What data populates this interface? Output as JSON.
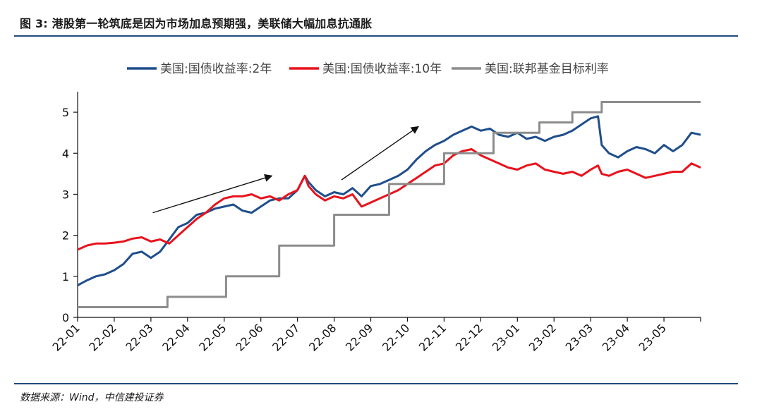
{
  "figure": {
    "title": "图 3: 港股第一轮筑底是因为市场加息预期强，美联储大幅加息抗通胀",
    "source": "数据来源：Wind，中信建投证券"
  },
  "chart_data": {
    "type": "line",
    "title": "",
    "xlabel": "",
    "ylabel": "",
    "ylim": [
      0,
      5.5
    ],
    "yticks": [
      0,
      1,
      2,
      3,
      4,
      5
    ],
    "xlim": [
      0,
      17
    ],
    "xticks": [
      "22-01",
      "22-02",
      "22-03",
      "22-04",
      "22-05",
      "22-06",
      "22-07",
      "22-08",
      "22-09",
      "22-10",
      "22-11",
      "22-12",
      "23-01",
      "23-02",
      "23-03",
      "23-04",
      "23-05"
    ],
    "grid": false,
    "legend_position": "top",
    "series": [
      {
        "name": "美国:国债收益率:2年",
        "color": "#1f4e8c",
        "x": [
          0,
          0.25,
          0.5,
          0.75,
          1.0,
          1.25,
          1.5,
          1.75,
          2.0,
          2.25,
          2.5,
          2.75,
          3.0,
          3.25,
          3.5,
          3.75,
          4.0,
          4.25,
          4.5,
          4.75,
          5.0,
          5.25,
          5.5,
          5.75,
          6.0,
          6.2,
          6.3,
          6.5,
          6.75,
          7.0,
          7.25,
          7.5,
          7.75,
          8.0,
          8.25,
          8.5,
          8.75,
          9.0,
          9.25,
          9.5,
          9.75,
          10.0,
          10.25,
          10.5,
          10.75,
          11.0,
          11.25,
          11.5,
          11.75,
          12.0,
          12.25,
          12.5,
          12.75,
          13.0,
          13.25,
          13.5,
          13.75,
          14.0,
          14.2,
          14.3,
          14.5,
          14.75,
          15.0,
          15.25,
          15.5,
          15.75,
          16.0,
          16.25,
          16.5,
          16.75,
          17.0
        ],
        "y": [
          0.78,
          0.9,
          1.0,
          1.05,
          1.15,
          1.3,
          1.55,
          1.6,
          1.45,
          1.6,
          1.9,
          2.2,
          2.3,
          2.5,
          2.55,
          2.65,
          2.7,
          2.75,
          2.6,
          2.55,
          2.7,
          2.85,
          2.9,
          2.9,
          3.1,
          3.45,
          3.3,
          3.1,
          2.95,
          3.05,
          3.0,
          3.15,
          2.95,
          3.2,
          3.25,
          3.35,
          3.45,
          3.6,
          3.85,
          4.05,
          4.2,
          4.3,
          4.45,
          4.55,
          4.65,
          4.55,
          4.6,
          4.45,
          4.4,
          4.5,
          4.35,
          4.4,
          4.3,
          4.4,
          4.45,
          4.55,
          4.7,
          4.85,
          4.9,
          4.2,
          4.0,
          3.9,
          4.05,
          4.15,
          4.1,
          4.0,
          4.2,
          4.05,
          4.2,
          4.5,
          4.45
        ]
      },
      {
        "name": "美国:国债收益率:10年",
        "color": "#e8131c",
        "x": [
          0,
          0.25,
          0.5,
          0.75,
          1.0,
          1.25,
          1.5,
          1.75,
          2.0,
          2.25,
          2.5,
          2.75,
          3.0,
          3.25,
          3.5,
          3.75,
          4.0,
          4.25,
          4.5,
          4.75,
          5.0,
          5.25,
          5.5,
          5.75,
          6.0,
          6.2,
          6.3,
          6.5,
          6.75,
          7.0,
          7.25,
          7.5,
          7.75,
          8.0,
          8.25,
          8.5,
          8.75,
          9.0,
          9.25,
          9.5,
          9.75,
          10.0,
          10.25,
          10.5,
          10.75,
          11.0,
          11.25,
          11.5,
          11.75,
          12.0,
          12.25,
          12.5,
          12.75,
          13.0,
          13.25,
          13.5,
          13.75,
          14.0,
          14.2,
          14.3,
          14.5,
          14.75,
          15.0,
          15.25,
          15.5,
          15.75,
          16.0,
          16.25,
          16.5,
          16.75,
          17.0
        ],
        "y": [
          1.65,
          1.75,
          1.8,
          1.8,
          1.82,
          1.85,
          1.92,
          1.95,
          1.85,
          1.9,
          1.8,
          2.0,
          2.2,
          2.4,
          2.55,
          2.75,
          2.9,
          2.95,
          2.95,
          3.0,
          2.9,
          2.95,
          2.85,
          3.0,
          3.1,
          3.45,
          3.2,
          3.0,
          2.85,
          2.95,
          2.9,
          3.0,
          2.7,
          2.8,
          2.9,
          3.0,
          3.1,
          3.25,
          3.4,
          3.55,
          3.7,
          3.75,
          3.95,
          4.05,
          4.1,
          3.95,
          3.85,
          3.75,
          3.65,
          3.6,
          3.7,
          3.75,
          3.6,
          3.55,
          3.5,
          3.55,
          3.45,
          3.6,
          3.7,
          3.5,
          3.45,
          3.55,
          3.6,
          3.5,
          3.4,
          3.45,
          3.5,
          3.55,
          3.55,
          3.75,
          3.65
        ]
      },
      {
        "name": "美国:联邦基金目标利率",
        "color": "#8c8c8c",
        "x": [
          0,
          2.45,
          2.45,
          4.05,
          4.05,
          5.5,
          5.5,
          7.0,
          7.0,
          8.5,
          8.5,
          10.0,
          10.0,
          11.35,
          11.35,
          12.6,
          12.6,
          13.5,
          13.5,
          14.3,
          14.3,
          15.3,
          15.3,
          17.0
        ],
        "y": [
          0.25,
          0.25,
          0.5,
          0.5,
          1.0,
          1.0,
          1.75,
          1.75,
          2.5,
          2.5,
          3.25,
          3.25,
          4.0,
          4.0,
          4.5,
          4.5,
          4.75,
          4.75,
          5.0,
          5.0,
          5.25,
          5.25,
          5.25,
          5.25
        ]
      }
    ],
    "annotations": [
      {
        "type": "arrow",
        "from": [
          2.05,
          2.55
        ],
        "to": [
          5.3,
          3.45
        ]
      },
      {
        "type": "arrow",
        "from": [
          7.2,
          3.35
        ],
        "to": [
          9.3,
          4.65
        ]
      }
    ]
  }
}
